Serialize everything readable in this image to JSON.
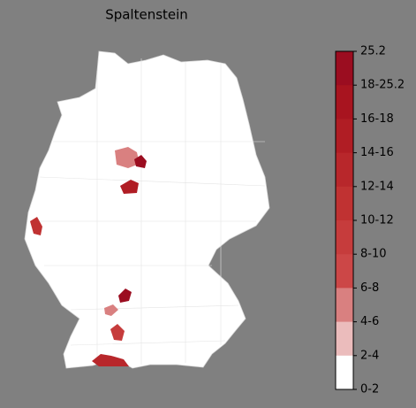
{
  "title": "Spaltenstein",
  "colorbar": {
    "ticks": [
      "25.2",
      "18-25.2",
      "16-18",
      "14-16",
      "12-14",
      "10-12",
      "8-10",
      "6-8",
      "4-6",
      "2-4",
      "0-2"
    ],
    "colors": [
      "#9b0d20",
      "#a8141f",
      "#b01d24",
      "#b8272b",
      "#c03232",
      "#c63c3c",
      "#cc4747",
      "#d98080",
      "#ebbcbc",
      "#ffffff"
    ]
  }
}
